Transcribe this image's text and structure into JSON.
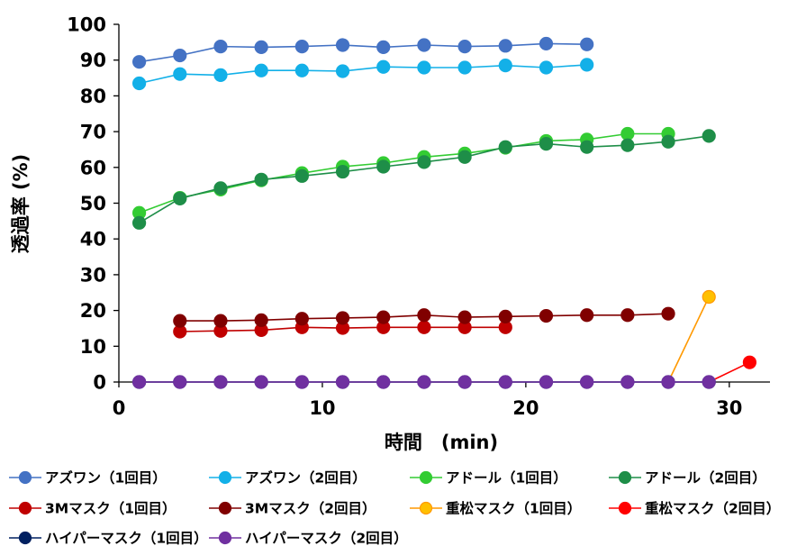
{
  "chart_data": {
    "type": "line",
    "title": "",
    "xlabel": "時間　(min)",
    "ylabel": "透過率 (%)",
    "xlim": [
      0,
      32
    ],
    "ylim": [
      0,
      100
    ],
    "x_ticks": [
      0,
      10,
      20,
      30
    ],
    "y_ticks": [
      0,
      10,
      20,
      30,
      40,
      50,
      60,
      70,
      80,
      90,
      100
    ],
    "grid": false,
    "legend_position": "bottom",
    "series": [
      {
        "name": "アズワン（1回目）",
        "color": "#4472C4",
        "x": [
          1,
          3,
          5,
          7,
          9,
          11,
          13,
          15,
          17,
          19,
          21,
          23
        ],
        "y": [
          89.5,
          91.3,
          93.8,
          93.6,
          93.8,
          94.2,
          93.6,
          94.2,
          93.8,
          94.0,
          94.6,
          94.4
        ]
      },
      {
        "name": "アズワン（2回目）",
        "color": "#13B0E8",
        "x": [
          1,
          3,
          5,
          7,
          9,
          11,
          13,
          15,
          17,
          19,
          21,
          23
        ],
        "y": [
          83.5,
          86.1,
          85.8,
          87.1,
          87.1,
          86.9,
          88.1,
          87.9,
          87.9,
          88.5,
          87.9,
          88.7
        ]
      },
      {
        "name": "アドール（1回目）",
        "color": "#33CC33",
        "x": [
          1,
          3,
          5,
          7,
          9,
          11,
          13,
          15,
          17,
          19,
          21,
          23,
          25,
          27
        ],
        "y": [
          47.3,
          51.5,
          53.8,
          56.4,
          58.4,
          60.2,
          61.2,
          62.9,
          63.9,
          65.5,
          67.4,
          67.8,
          69.4,
          69.4
        ]
      },
      {
        "name": "アドール（2回目）",
        "color": "#1E8E48",
        "x": [
          1,
          3,
          5,
          7,
          9,
          11,
          13,
          15,
          17,
          19,
          21,
          23,
          25,
          27,
          29
        ],
        "y": [
          44.5,
          51.3,
          54.2,
          56.6,
          57.6,
          58.8,
          60.2,
          61.5,
          62.9,
          65.7,
          66.6,
          65.7,
          66.2,
          67.2,
          68.8
        ]
      },
      {
        "name": "3Mマスク（1回目）",
        "color": "#C00000",
        "x": [
          3,
          5,
          7,
          9,
          11,
          13,
          15,
          17,
          19
        ],
        "y": [
          14.1,
          14.3,
          14.5,
          15.3,
          15.1,
          15.3,
          15.3,
          15.3,
          15.3
        ]
      },
      {
        "name": "3Mマスク（2回目）",
        "color": "#800000",
        "x": [
          3,
          5,
          7,
          9,
          11,
          13,
          15,
          17,
          19,
          21,
          23,
          25,
          27
        ],
        "y": [
          17.1,
          17.1,
          17.3,
          17.7,
          17.9,
          18.1,
          18.7,
          18.1,
          18.3,
          18.5,
          18.7,
          18.7,
          19.1
        ]
      },
      {
        "name": "重松マスク（1回目）",
        "color": "#FF9900",
        "marker_fill": "#FFC000",
        "x": [
          27,
          29
        ],
        "y": [
          0,
          23.8
        ],
        "markers": [
          false,
          true
        ]
      },
      {
        "name": "重松マスク（2回目）",
        "color": "#FF0000",
        "x": [
          29,
          31
        ],
        "y": [
          0,
          5.5
        ],
        "markers": [
          false,
          true
        ]
      },
      {
        "name": "ハイパーマスク（1回目）",
        "color": "#002060",
        "x": [
          1,
          3,
          5,
          7,
          9,
          11,
          13,
          15,
          17,
          19,
          21,
          23,
          25,
          27,
          29
        ],
        "y": [
          0,
          0,
          0,
          0,
          0,
          0,
          0,
          0,
          0,
          0,
          0,
          0,
          0,
          0,
          0
        ]
      },
      {
        "name": "ハイパーマスク（2回目）",
        "color": "#7030A0",
        "x": [
          1,
          3,
          5,
          7,
          9,
          11,
          13,
          15,
          17,
          19,
          21,
          23,
          25,
          27,
          29
        ],
        "y": [
          0,
          0,
          0,
          0,
          0,
          0,
          0,
          0,
          0,
          0,
          0,
          0,
          0,
          0,
          0
        ]
      }
    ]
  }
}
